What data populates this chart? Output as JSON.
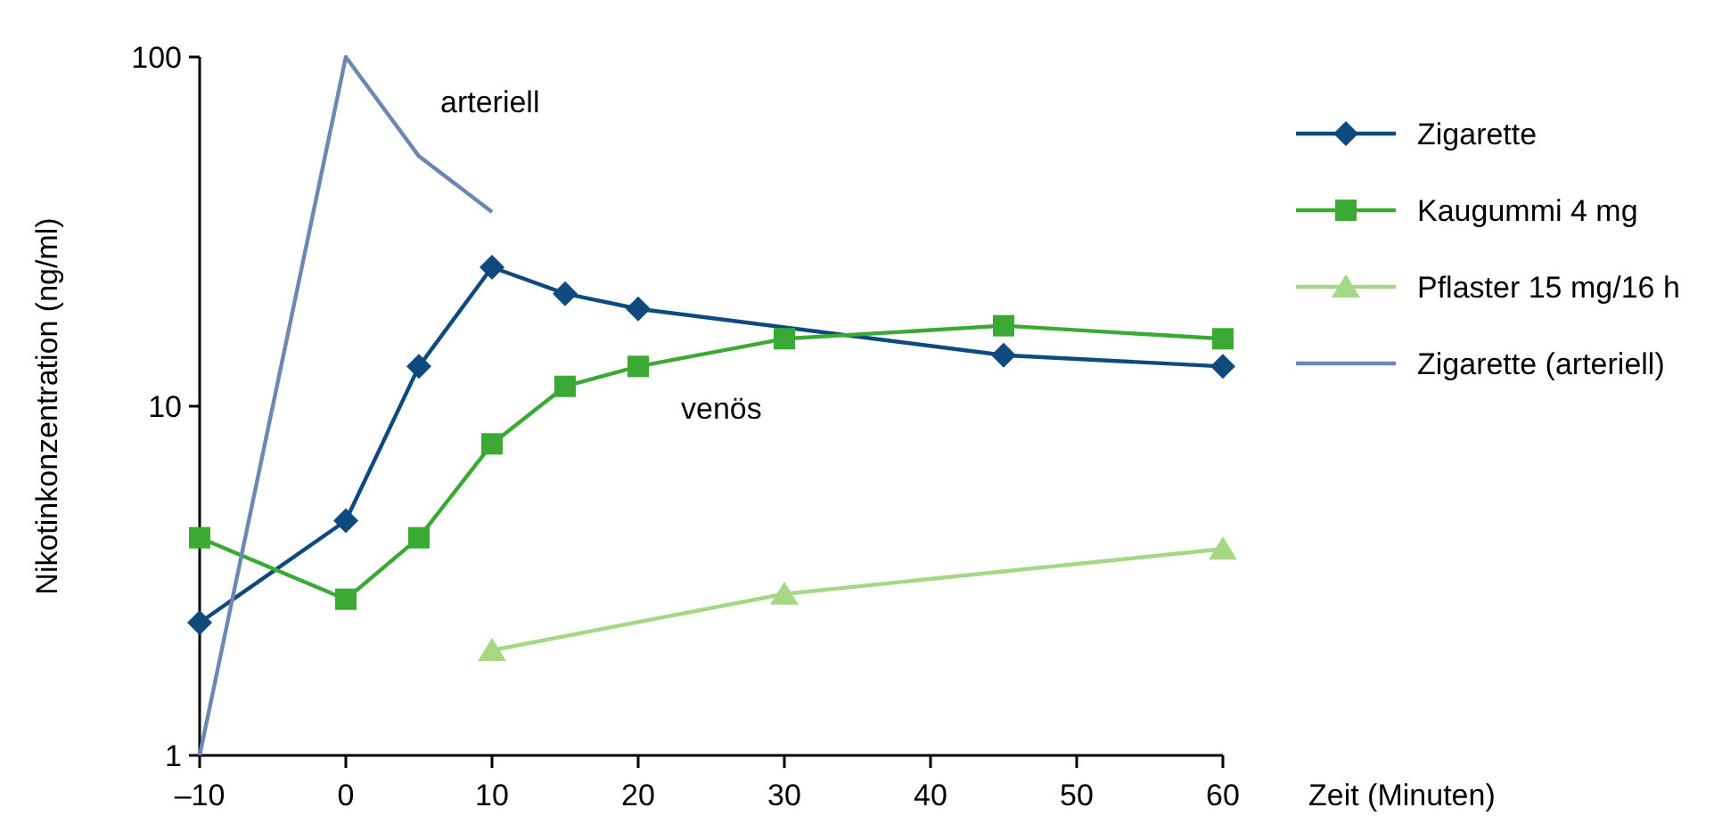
{
  "chart_data": {
    "type": "line",
    "xlabel": "Zeit (Minuten)",
    "ylabel": "Nikotinkonzentration (ng/ml)",
    "log": "y",
    "grid": false,
    "legend": "right",
    "xlim": [
      -10,
      60
    ],
    "xticks": [
      {
        "value": -10,
        "label": "–10"
      },
      0,
      10,
      20,
      30,
      40,
      50,
      60
    ],
    "ylim": [
      1,
      100
    ],
    "yticks": [
      1,
      10,
      100
    ],
    "series": [
      {
        "name": "Zigarette",
        "color": "#0e4a7e",
        "marker": "diamond",
        "x": [
          -10,
          0,
          5,
          10,
          15,
          20,
          45,
          60
        ],
        "values": [
          2.4,
          4.7,
          13,
          25,
          21,
          19,
          14,
          13
        ]
      },
      {
        "name": "Kaugummi 4 mg",
        "color": "#3aaa35",
        "marker": "square",
        "x": [
          -10,
          0,
          5,
          10,
          15,
          20,
          30,
          45,
          60
        ],
        "values": [
          4.2,
          2.8,
          4.2,
          7.8,
          11.4,
          13,
          15.6,
          17,
          15.6
        ]
      },
      {
        "name": "Pflaster 15 mg/16 h",
        "color": "#a6d785",
        "marker": "triangle",
        "x": [
          10,
          30,
          60
        ],
        "values": [
          2,
          2.9,
          3.9
        ]
      },
      {
        "name": "Zigarette (arteriell)",
        "color": "#6b88b5",
        "marker": "none",
        "x": [
          -10,
          0,
          5,
          10
        ],
        "values": [
          1,
          100,
          52,
          36
        ]
      }
    ],
    "annotations": [
      "arteriell",
      "venös"
    ]
  }
}
